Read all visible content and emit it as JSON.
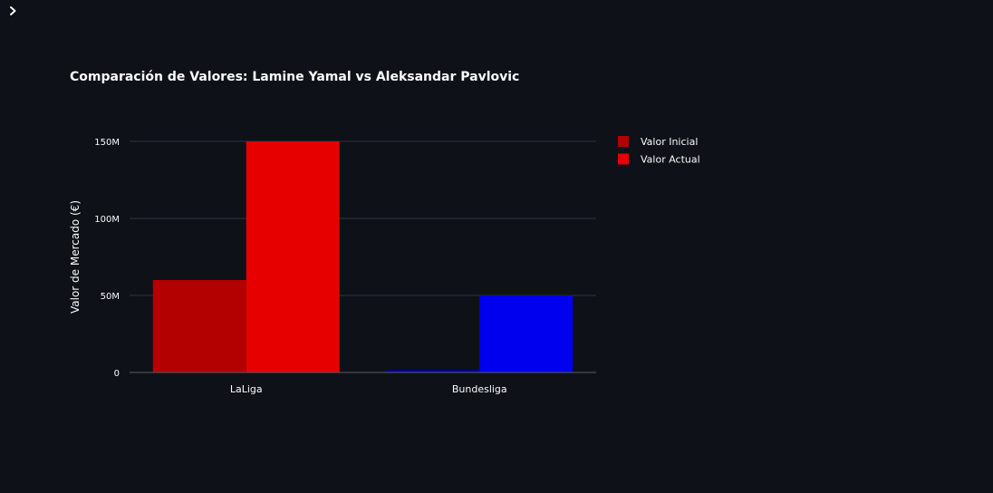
{
  "chart_data": {
    "type": "bar",
    "title": "Comparación de Valores: Lamine Yamal vs Aleksandar Pavlovic",
    "xlabel": "",
    "ylabel": "Valor de Mercado (€)",
    "categories": [
      "LaLiga",
      "Bundesliga"
    ],
    "series": [
      {
        "name": "Valor Inicial",
        "values": [
          60000000,
          1500000
        ],
        "colors": [
          "#b30000",
          "#0000b3"
        ]
      },
      {
        "name": "Valor Actual",
        "values": [
          150000000,
          50000000
        ],
        "colors": [
          "#e60000",
          "#0000ee"
        ]
      }
    ],
    "legend_colors": [
      "#b30000",
      "#e60000"
    ],
    "ylim": [
      0,
      150000000
    ],
    "yticks": [
      0,
      50000000,
      100000000,
      150000000
    ],
    "ytick_labels": [
      "0",
      "50M",
      "100M",
      "150M"
    ],
    "grid": true,
    "legend_position": "top-right"
  },
  "icons": {
    "sidebar_toggle": "chevron-right-icon"
  }
}
